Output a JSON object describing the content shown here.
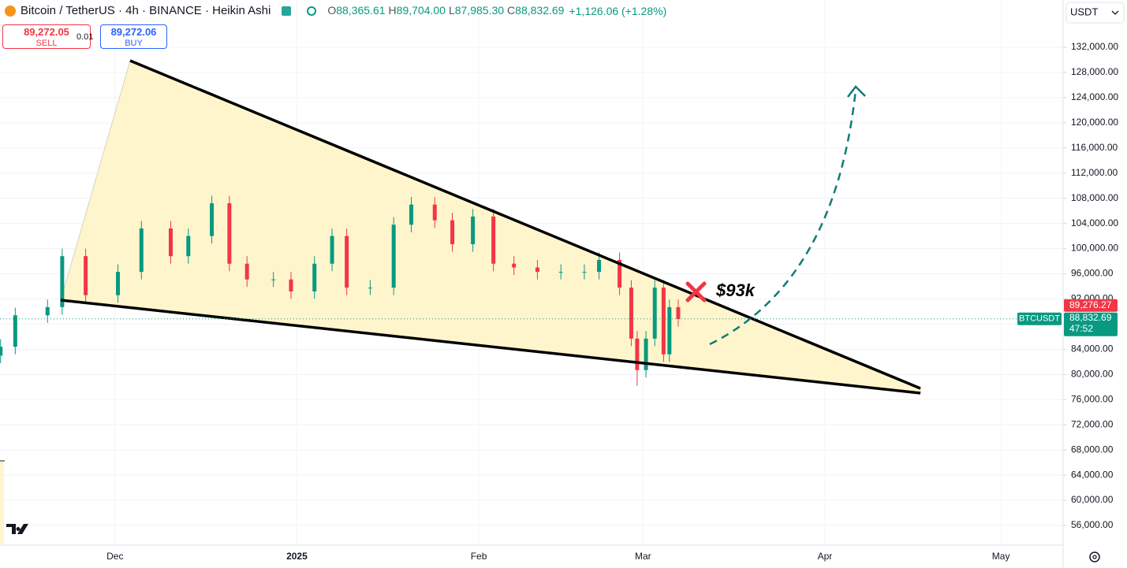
{
  "header": {
    "title": "Bitcoin / TetherUS · 4h · BINANCE · Heikin Ashi",
    "ohlc": [
      {
        "key": "O",
        "value": "88,365.61"
      },
      {
        "key": "H",
        "value": "89,704.00"
      },
      {
        "key": "L",
        "value": "87,985.30"
      },
      {
        "key": "C",
        "value": "88,832.69"
      }
    ],
    "change": "+1,126.06 (+1.28%)",
    "sell_price": "89,272.05",
    "sell_label": "SELL",
    "spread": "0.01",
    "buy_price": "89,272.06",
    "buy_label": "BUY",
    "currency": "USDT"
  },
  "chart_data": {
    "type": "candlestick",
    "x": [
      -19.5,
      -17,
      -11.5,
      -9,
      -5,
      0.5,
      4.5,
      9.5,
      12.5,
      16.5,
      19.5,
      22.5,
      27,
      30,
      34,
      37,
      39.5,
      43.5,
      47.5,
      50.5,
      54.5,
      57.5,
      61,
      64.5,
      68,
      72,
      76,
      80,
      82.5,
      86,
      88,
      89,
      90.5,
      92,
      93.5,
      94.5,
      96
    ],
    "open": [
      83000,
      84400,
      89400,
      90700,
      98800,
      92600,
      96300,
      103200,
      98800,
      102000,
      107200,
      97600,
      95100,
      95100,
      93200,
      97600,
      102000,
      93800,
      93800,
      103800,
      107000,
      104500,
      100700,
      105100,
      97600,
      97000,
      96300,
      96300,
      96300,
      98200,
      93800,
      85700,
      80700,
      85700,
      93800,
      83200,
      90700
    ],
    "high": [
      85600,
      90600,
      91900,
      100000,
      100000,
      97500,
      104400,
      104400,
      103200,
      108400,
      108400,
      98800,
      96300,
      96300,
      98800,
      103200,
      103200,
      95000,
      105000,
      108200,
      108200,
      105700,
      106300,
      106300,
      98800,
      98200,
      97500,
      97500,
      99400,
      99400,
      95000,
      86900,
      86900,
      95000,
      95000,
      91900,
      91900
    ],
    "low": [
      81800,
      83200,
      88200,
      89500,
      91400,
      91400,
      95100,
      97600,
      97600,
      100800,
      96400,
      93900,
      93900,
      92000,
      92000,
      96400,
      92600,
      92600,
      92600,
      102600,
      103300,
      99500,
      99500,
      96400,
      95800,
      95100,
      95100,
      95100,
      95100,
      92600,
      84500,
      78200,
      79500,
      84500,
      82000,
      82000,
      87600
    ],
    "close": [
      84400,
      89400,
      90700,
      98800,
      92600,
      96300,
      103200,
      98800,
      102000,
      107200,
      97600,
      95100,
      95100,
      93200,
      97600,
      102000,
      93800,
      93800,
      103800,
      107000,
      104500,
      100700,
      105100,
      97600,
      97000,
      96300,
      96300,
      96300,
      98200,
      93800,
      85700,
      80700,
      85700,
      93800,
      83200,
      90700,
      88800
    ],
    "up_color": "#089981",
    "down_color": "#f23645",
    "xlim": [
      -19.6,
      161.2
    ],
    "xticks": [
      {
        "value": 0,
        "label": "Dec"
      },
      {
        "value": 31,
        "label": "2025"
      },
      {
        "value": 62,
        "label": "Feb"
      },
      {
        "value": 90,
        "label": "Mar"
      },
      {
        "value": 121,
        "label": "Apr"
      },
      {
        "value": 151,
        "label": "May"
      }
    ],
    "ylim": [
      52870,
      139512
    ],
    "yticks": [
      {
        "value": 56000,
        "label": "56,000.00"
      },
      {
        "value": 60000,
        "label": "60,000.00"
      },
      {
        "value": 64000,
        "label": "64,000.00"
      },
      {
        "value": 68000,
        "label": "68,000.00"
      },
      {
        "value": 72000,
        "label": "72,000.00"
      },
      {
        "value": 76000,
        "label": "76,000.00"
      },
      {
        "value": 80000,
        "label": "80,000.00"
      },
      {
        "value": 84000,
        "label": "84,000.00"
      },
      {
        "value": 88000,
        "label": "88,000.00"
      },
      {
        "value": 92000,
        "label": "92,000.00"
      },
      {
        "value": 96000,
        "label": "96,000.00"
      },
      {
        "value": 100000,
        "label": "100,000.00"
      },
      {
        "value": 104000,
        "label": "104,000.00"
      },
      {
        "value": 108000,
        "label": "108,000.00"
      },
      {
        "value": 112000,
        "label": "112,000.00"
      },
      {
        "value": 116000,
        "label": "116,000.00"
      },
      {
        "value": 120000,
        "label": "120,000.00"
      },
      {
        "value": 124000,
        "label": "124,000.00"
      },
      {
        "value": 128000,
        "label": "128,000.00"
      },
      {
        "value": 132000,
        "label": "132,000.00"
      }
    ],
    "grid": true,
    "last_price": {
      "value": 88832.69,
      "label": "88,832.69"
    },
    "ask_price": {
      "value": 89276.27,
      "label": "89,276.27"
    },
    "countdown": "47:52",
    "symbol": "BTCUSDT",
    "annotation": "$93k"
  }
}
